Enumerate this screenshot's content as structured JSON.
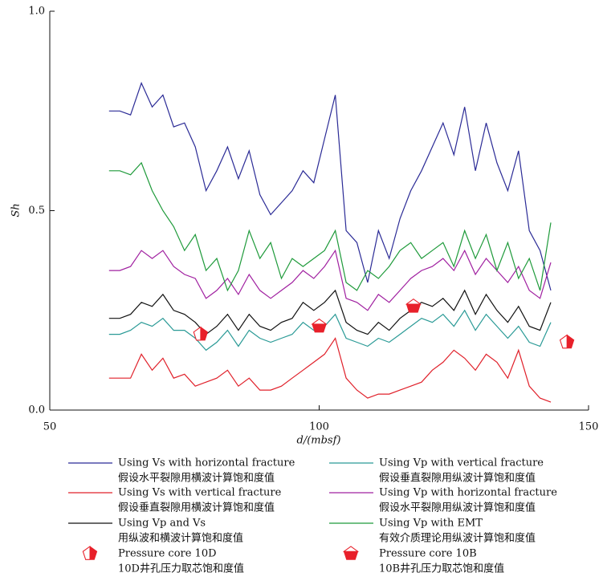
{
  "chart_data": {
    "type": "line",
    "xlabel": "d/(mbsf)",
    "ylabel": "Sh",
    "xlim": [
      50,
      150
    ],
    "xticks": [
      50,
      100,
      150
    ],
    "ylim": [
      0,
      1
    ],
    "yticks": [
      {
        "value": 0,
        "label": "0.0"
      },
      {
        "value": 0.5,
        "label": "0.5"
      },
      {
        "value": 1,
        "label": "1.0"
      }
    ],
    "x": [
      61,
      63,
      65,
      67,
      69,
      71,
      73,
      75,
      77,
      79,
      81,
      83,
      85,
      87,
      89,
      91,
      93,
      95,
      97,
      99,
      101,
      103,
      105,
      107,
      109,
      111,
      113,
      115,
      117,
      119,
      121,
      123,
      125,
      127,
      129,
      131,
      133,
      135,
      137,
      139,
      141,
      143
    ],
    "series": [
      {
        "name": "Using Vs with horizontal fracture",
        "name_zh": "假设水平裂隙用横波计算饱和度值",
        "color": "#2b2b96",
        "values": [
          0.75,
          0.75,
          0.74,
          0.82,
          0.76,
          0.79,
          0.71,
          0.72,
          0.66,
          0.55,
          0.6,
          0.66,
          0.58,
          0.65,
          0.54,
          0.49,
          0.52,
          0.55,
          0.6,
          0.57,
          0.68,
          0.79,
          0.45,
          0.42,
          0.32,
          0.45,
          0.38,
          0.48,
          0.55,
          0.6,
          0.66,
          0.72,
          0.64,
          0.76,
          0.6,
          0.72,
          0.62,
          0.55,
          0.65,
          0.45,
          0.4,
          0.3
        ]
      },
      {
        "name": "Using Vs with vertical fracture",
        "name_zh": "假设垂直裂隙用横波计算饱和度值",
        "color": "#e0202a",
        "values": [
          0.08,
          0.08,
          0.08,
          0.14,
          0.1,
          0.13,
          0.08,
          0.09,
          0.06,
          0.07,
          0.08,
          0.1,
          0.06,
          0.08,
          0.05,
          0.05,
          0.06,
          0.08,
          0.1,
          0.12,
          0.14,
          0.18,
          0.08,
          0.05,
          0.03,
          0.04,
          0.04,
          0.05,
          0.06,
          0.07,
          0.1,
          0.12,
          0.15,
          0.13,
          0.1,
          0.14,
          0.12,
          0.08,
          0.15,
          0.06,
          0.03,
          0.02
        ]
      },
      {
        "name": "Using Vp and Vs",
        "name_zh": "用纵波和横波计算饱和度值",
        "color": "#111111",
        "values": [
          0.23,
          0.23,
          0.24,
          0.27,
          0.26,
          0.29,
          0.25,
          0.24,
          0.22,
          0.19,
          0.21,
          0.24,
          0.2,
          0.24,
          0.21,
          0.2,
          0.22,
          0.23,
          0.27,
          0.25,
          0.27,
          0.3,
          0.22,
          0.2,
          0.19,
          0.22,
          0.2,
          0.23,
          0.25,
          0.27,
          0.26,
          0.28,
          0.25,
          0.3,
          0.24,
          0.29,
          0.25,
          0.22,
          0.26,
          0.21,
          0.2,
          0.27
        ]
      },
      {
        "name": "Using Vp with vertical fracture",
        "name_zh": "假设垂直裂隙用纵波计算饱和度值",
        "color": "#2a9a96",
        "values": [
          0.19,
          0.19,
          0.2,
          0.22,
          0.21,
          0.23,
          0.2,
          0.2,
          0.18,
          0.15,
          0.17,
          0.2,
          0.16,
          0.2,
          0.18,
          0.17,
          0.18,
          0.19,
          0.22,
          0.2,
          0.21,
          0.24,
          0.18,
          0.17,
          0.16,
          0.18,
          0.17,
          0.19,
          0.21,
          0.23,
          0.22,
          0.24,
          0.21,
          0.25,
          0.2,
          0.24,
          0.21,
          0.18,
          0.21,
          0.17,
          0.16,
          0.22
        ]
      },
      {
        "name": "Using Vp with horizontal fracture",
        "name_zh": "假设水平裂隙用纵波计算饱和度值",
        "color": "#a020a0",
        "values": [
          0.35,
          0.35,
          0.36,
          0.4,
          0.38,
          0.4,
          0.36,
          0.34,
          0.33,
          0.28,
          0.3,
          0.33,
          0.29,
          0.34,
          0.3,
          0.28,
          0.3,
          0.32,
          0.35,
          0.33,
          0.36,
          0.4,
          0.28,
          0.27,
          0.25,
          0.29,
          0.27,
          0.3,
          0.33,
          0.35,
          0.36,
          0.38,
          0.35,
          0.4,
          0.34,
          0.38,
          0.35,
          0.32,
          0.36,
          0.3,
          0.28,
          0.37
        ]
      },
      {
        "name": "Using Vp with EMT",
        "name_zh": "有效介质理论用纵波计算饱和度值",
        "color": "#1e9a3a",
        "values": [
          0.6,
          0.6,
          0.59,
          0.62,
          0.55,
          0.5,
          0.46,
          0.4,
          0.44,
          0.35,
          0.38,
          0.3,
          0.35,
          0.45,
          0.38,
          0.42,
          0.33,
          0.38,
          0.36,
          0.38,
          0.4,
          0.45,
          0.32,
          0.3,
          0.35,
          0.33,
          0.36,
          0.4,
          0.42,
          0.38,
          0.4,
          0.42,
          0.36,
          0.45,
          0.38,
          0.44,
          0.35,
          0.42,
          0.33,
          0.38,
          0.3,
          0.47
        ]
      }
    ],
    "points": [
      {
        "name": "Pressure core 10D",
        "name_zh": "10D井孔压力取芯饱和度值",
        "color": "#e8202a",
        "x": [
          78,
          146
        ],
        "values": [
          0.19,
          0.17
        ]
      },
      {
        "name": "Pressure core 10B",
        "name_zh": "10B井孔压力取芯饱和度值",
        "color": "#e8202a",
        "x": [
          100,
          117.5
        ],
        "values": [
          0.21,
          0.26
        ]
      }
    ]
  }
}
